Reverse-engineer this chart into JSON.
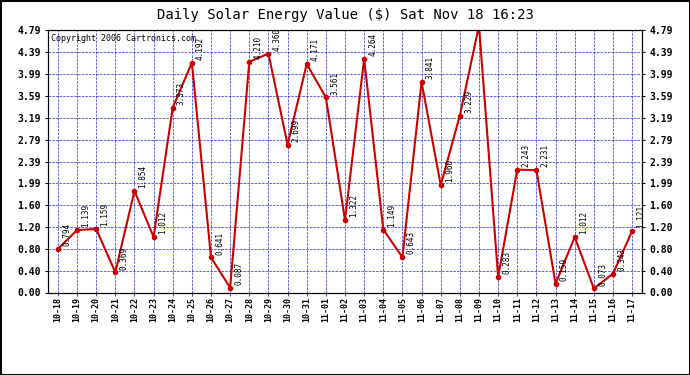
{
  "title": "Daily Solar Energy Value ($) Sat Nov 18 16:23",
  "copyright": "Copyright 2006 Cartronics.com",
  "labels": [
    "10-18",
    "10-19",
    "10-20",
    "10-21",
    "10-22",
    "10-23",
    "10-24",
    "10-25",
    "10-26",
    "10-27",
    "10-28",
    "10-29",
    "10-30",
    "10-31",
    "11-01",
    "11-02",
    "11-03",
    "11-04",
    "11-05",
    "11-06",
    "11-07",
    "11-08",
    "11-09",
    "11-10",
    "11-11",
    "11-12",
    "11-13",
    "11-14",
    "11-15",
    "11-16",
    "11-17"
  ],
  "values": [
    0.794,
    1.139,
    1.159,
    0.369,
    1.854,
    1.012,
    3.373,
    4.192,
    0.641,
    0.087,
    4.21,
    4.36,
    2.699,
    4.171,
    3.561,
    1.322,
    4.264,
    1.149,
    0.643,
    3.841,
    1.96,
    3.229,
    4.872,
    0.283,
    2.243,
    2.231,
    0.159,
    1.012,
    0.073,
    0.343,
    1.121
  ],
  "line_color": "#cc0000",
  "marker_color": "#cc0000",
  "bg_color": "#ffffff",
  "grid_color": "#0000bb",
  "title_color": "#000000",
  "label_color": "#000000",
  "ylim": [
    0.0,
    4.79
  ],
  "yticks": [
    0.0,
    0.4,
    0.8,
    1.2,
    1.6,
    1.99,
    2.39,
    2.79,
    3.19,
    3.59,
    3.99,
    4.39,
    4.79
  ]
}
